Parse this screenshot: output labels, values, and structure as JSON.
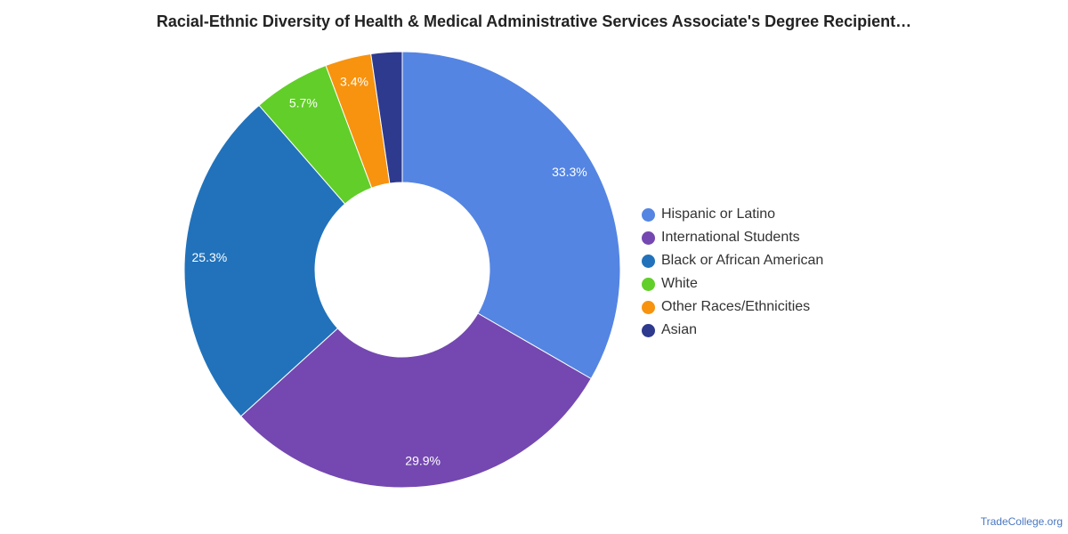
{
  "chart_data": {
    "type": "pie",
    "title": "Racial-Ethnic Diversity of Health & Medical Administrative Services Associate's Degree Recipient…",
    "categories": [
      "Hispanic or Latino",
      "International Students",
      "Black or African American",
      "White",
      "Other Races/Ethnicities",
      "Asian"
    ],
    "values": [
      33.3,
      29.9,
      25.3,
      5.7,
      3.4,
      2.3
    ],
    "data_labels": [
      "33.3%",
      "29.9%",
      "25.3%",
      "5.7%",
      "3.4%",
      ""
    ],
    "colors": [
      "#5485e3",
      "#7448b0",
      "#2172bb",
      "#62ce2a",
      "#f7930f",
      "#2e3a8e"
    ],
    "donut": true,
    "legend_position": "right"
  },
  "watermark": "TradeCollege.org"
}
